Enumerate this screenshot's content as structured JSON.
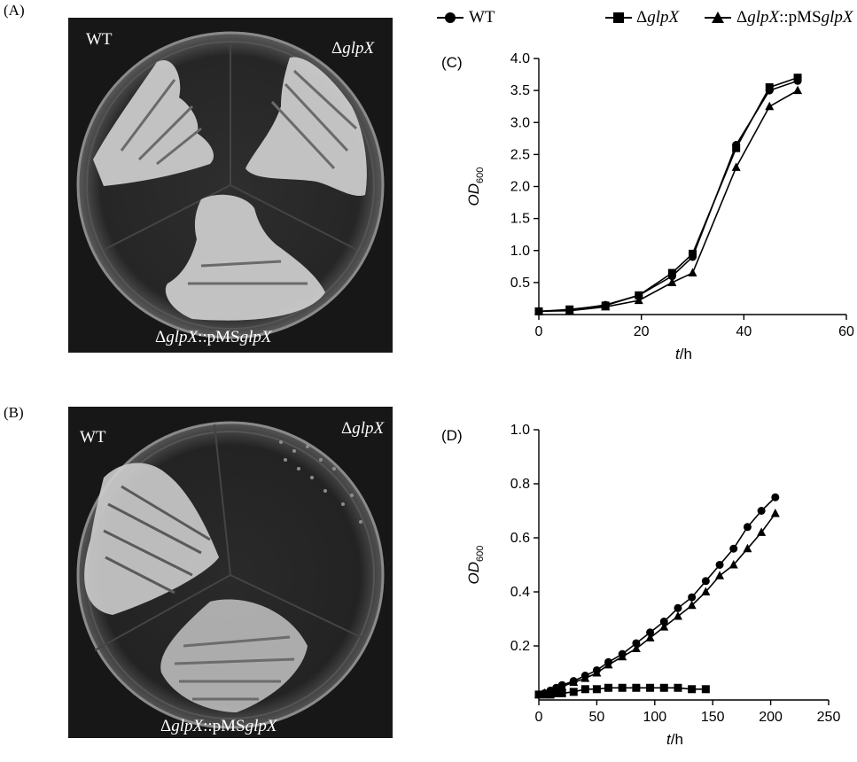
{
  "panels": {
    "a": "(A)",
    "b": "(B)",
    "c": "(C)",
    "d": "(D)"
  },
  "plate_a": {
    "label_wt": "WT",
    "label_delta": "Δ",
    "label_gene": "glpX",
    "label_comp_prefix": "::pMS",
    "label_comp_gene": "glpX"
  },
  "plate_b": {
    "label_wt": "WT",
    "label_delta": "Δ",
    "label_gene": "glpX",
    "label_comp_prefix": "::pMS",
    "label_comp_gene": "glpX"
  },
  "legend": {
    "items": [
      {
        "series": "WT",
        "marker": "circle",
        "text_plain": "WT",
        "italic": ""
      },
      {
        "series": "ΔglpX",
        "marker": "square",
        "text_plain": "Δ",
        "italic": "glpX"
      },
      {
        "series": "ΔglpX::pMSglpX",
        "marker": "triangle",
        "text_plain": "Δ",
        "italic": "glpX",
        "text_mid": "::pMS",
        "italic2": "glpX"
      }
    ]
  },
  "chart_data": [
    {
      "panel": "(C)",
      "type": "line",
      "xlabel_italic": "t",
      "xlabel_unit": "/h",
      "ylabel_italic": "OD",
      "ylabel_sub": "600",
      "xlim": [
        0,
        60
      ],
      "ylim": [
        0,
        4.0
      ],
      "xticks": [
        0,
        20,
        40,
        60
      ],
      "yticks": [
        0.5,
        1.0,
        1.5,
        2.0,
        2.5,
        3.0,
        3.5,
        4.0
      ],
      "ytick_labels": [
        "0.5",
        "1.0",
        "1.5",
        "2.0",
        "2.5",
        "3.0",
        "3.5",
        "4.0"
      ],
      "grid": false,
      "series": [
        {
          "name": "WT",
          "marker": "circle",
          "x": [
            0,
            6,
            13,
            19.5,
            26,
            30,
            38.5,
            45,
            50.5
          ],
          "y": [
            0.05,
            0.07,
            0.15,
            0.3,
            0.6,
            0.9,
            2.65,
            3.5,
            3.65
          ]
        },
        {
          "name": "ΔglpX",
          "marker": "square",
          "x": [
            0,
            6,
            13,
            19.5,
            26,
            30,
            38.5,
            45,
            50.5
          ],
          "y": [
            0.05,
            0.08,
            0.14,
            0.3,
            0.65,
            0.95,
            2.6,
            3.55,
            3.7
          ]
        },
        {
          "name": "ΔglpX::pMSglpX",
          "marker": "triangle",
          "x": [
            0,
            6,
            13,
            19.5,
            26,
            30,
            38.5,
            45,
            50.5
          ],
          "y": [
            0.05,
            0.06,
            0.12,
            0.22,
            0.5,
            0.65,
            2.3,
            3.25,
            3.5
          ]
        }
      ]
    },
    {
      "panel": "(D)",
      "type": "line",
      "xlabel_italic": "t",
      "xlabel_unit": "/h",
      "ylabel_italic": "OD",
      "ylabel_sub": "600",
      "xlim": [
        0,
        250
      ],
      "ylim": [
        0,
        1.0
      ],
      "xticks": [
        0,
        50,
        100,
        150,
        200,
        250
      ],
      "yticks": [
        0.2,
        0.4,
        0.6,
        0.8,
        1.0
      ],
      "ytick_labels": [
        "0.2",
        "0.4",
        "0.6",
        "0.8",
        "1.0"
      ],
      "grid": false,
      "series": [
        {
          "name": "WT",
          "marker": "circle",
          "x": [
            0,
            5,
            10,
            15,
            20,
            30,
            40,
            50,
            60,
            72,
            84,
            96,
            108,
            120,
            132,
            144,
            156,
            168,
            180,
            192,
            204
          ],
          "y": [
            0.02,
            0.025,
            0.035,
            0.045,
            0.055,
            0.07,
            0.09,
            0.11,
            0.14,
            0.17,
            0.21,
            0.25,
            0.29,
            0.34,
            0.38,
            0.44,
            0.5,
            0.56,
            0.64,
            0.7,
            0.75
          ]
        },
        {
          "name": "ΔglpX",
          "marker": "square",
          "x": [
            0,
            5,
            10,
            15,
            20,
            30,
            40,
            50,
            60,
            72,
            84,
            96,
            108,
            120,
            132,
            144
          ],
          "y": [
            0.02,
            0.02,
            0.02,
            0.025,
            0.025,
            0.03,
            0.04,
            0.04,
            0.045,
            0.045,
            0.045,
            0.045,
            0.045,
            0.045,
            0.04,
            0.04
          ]
        },
        {
          "name": "ΔglpX::pMSglpX",
          "marker": "triangle",
          "x": [
            0,
            5,
            10,
            15,
            20,
            30,
            40,
            50,
            60,
            72,
            84,
            96,
            108,
            120,
            132,
            144,
            156,
            168,
            180,
            192,
            204
          ],
          "y": [
            0.02,
            0.025,
            0.03,
            0.04,
            0.05,
            0.065,
            0.08,
            0.1,
            0.13,
            0.16,
            0.19,
            0.23,
            0.27,
            0.31,
            0.35,
            0.4,
            0.46,
            0.5,
            0.56,
            0.62,
            0.69
          ]
        }
      ]
    }
  ]
}
